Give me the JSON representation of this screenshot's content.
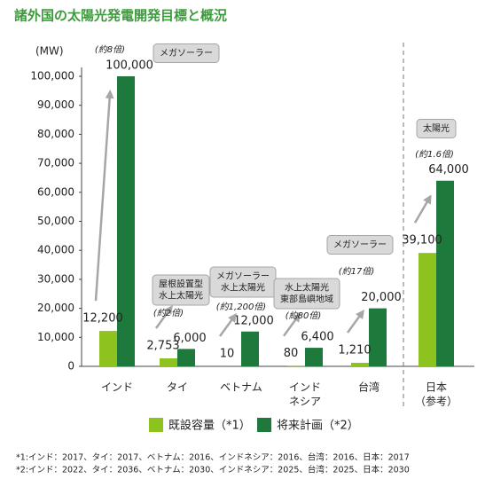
{
  "chart_data": {
    "type": "bar",
    "title": "諸外国の太陽光発電開発目標と概況",
    "y_unit": "(MW)",
    "categories": [
      [
        "インド"
      ],
      [
        "タイ"
      ],
      [
        "ベトナム"
      ],
      [
        "インド",
        "ネシア"
      ],
      [
        "台湾"
      ],
      [
        "日本",
        "（参考）"
      ]
    ],
    "series": [
      {
        "name": "既設容量（*1）",
        "color": "#8dc21f",
        "values": [
          12200,
          2753,
          10,
          80,
          1210,
          39100
        ],
        "value_labels": [
          "12,200",
          "2,753",
          "10",
          "80",
          "1,210",
          "39,100"
        ]
      },
      {
        "name": "将来計画（*2）",
        "color": "#1e7a3c",
        "values": [
          100000,
          6000,
          12000,
          6400,
          20000,
          64000
        ],
        "value_labels": [
          "100,000",
          "6,000",
          "12,000",
          "6,400",
          "20,000",
          "64,000"
        ]
      }
    ],
    "annotations": [
      {
        "box": [
          "メガソーラー"
        ],
        "ratio": "(約8倍)"
      },
      {
        "box": [
          "屋根設置型",
          "水上太陽光"
        ],
        "ratio": "(約2倍)"
      },
      {
        "box": [
          "メガソーラー",
          "水上太陽光"
        ],
        "ratio": "(約1,200倍)"
      },
      {
        "box": [
          "水上太陽光",
          "東部島嶼地域"
        ],
        "ratio": "(約80倍)"
      },
      {
        "box": [
          "メガソーラー"
        ],
        "ratio": "(約17倍)"
      },
      {
        "box": [
          "太陽光"
        ],
        "ratio": "(約1.6倍)"
      }
    ],
    "ylim": [
      0,
      100000
    ],
    "yticks": [
      0,
      {
        "value": 10000,
        "label": "10,000"
      },
      {
        "value": 20000,
        "label": "20,000"
      },
      {
        "value": 30000,
        "label": "30,000"
      },
      {
        "value": 40000,
        "label": "40,000"
      },
      {
        "value": 50000,
        "label": "50,000"
      },
      {
        "value": 60000,
        "label": "60,000"
      },
      {
        "value": 70000,
        "label": "70,000"
      },
      {
        "value": 80000,
        "label": "80,000"
      },
      {
        "value": 90000,
        "label": "90,000"
      },
      {
        "value": 100000,
        "label": "100,000"
      }
    ],
    "footnotes": [
      "*1:インド：2017、タイ：2017、ベトナム：2016、インドネシア：2016、台湾：2016、日本：2017",
      "*2:インド：2022、タイ：2036、ベトナム：2030、インドネシア：2025、台湾：2025、日本：2030"
    ]
  }
}
